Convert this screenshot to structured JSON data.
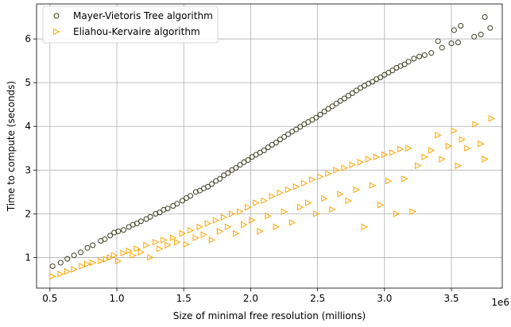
{
  "chart_data": {
    "type": "scatter",
    "xlabel": "Size of minimal free resolution (millions)",
    "ylabel": "Time to compute (seconds)",
    "x_offset_label": "1e6",
    "xlim": [
      0.4,
      3.88
    ],
    "ylim": [
      0.3,
      6.8
    ],
    "grid": true,
    "legend_position": "top-left",
    "x_ticks": [
      0.5,
      1.0,
      1.5,
      2.0,
      2.5,
      3.0,
      3.5
    ],
    "x_tick_labels": [
      "0.5",
      "1.0",
      "1.5",
      "2.0",
      "2.5",
      "3.0",
      "3.5"
    ],
    "y_ticks": [
      1,
      2,
      3,
      4,
      5,
      6
    ],
    "y_tick_labels": [
      "1",
      "2",
      "3",
      "4",
      "5",
      "6"
    ],
    "series": [
      {
        "name": "Mayer-Vietoris Tree algorithm",
        "marker": "circle",
        "color": "#3b3b1f",
        "points": [
          [
            0.52,
            0.8
          ],
          [
            0.58,
            0.88
          ],
          [
            0.63,
            0.97
          ],
          [
            0.68,
            1.05
          ],
          [
            0.73,
            1.12
          ],
          [
            0.78,
            1.22
          ],
          [
            0.82,
            1.28
          ],
          [
            0.88,
            1.38
          ],
          [
            0.91,
            1.42
          ],
          [
            0.95,
            1.5
          ],
          [
            0.98,
            1.57
          ],
          [
            1.01,
            1.6
          ],
          [
            1.05,
            1.63
          ],
          [
            1.09,
            1.7
          ],
          [
            1.12,
            1.75
          ],
          [
            1.15,
            1.78
          ],
          [
            1.18,
            1.83
          ],
          [
            1.22,
            1.88
          ],
          [
            1.25,
            1.93
          ],
          [
            1.29,
            2.0
          ],
          [
            1.32,
            2.03
          ],
          [
            1.35,
            2.09
          ],
          [
            1.38,
            2.12
          ],
          [
            1.42,
            2.18
          ],
          [
            1.45,
            2.23
          ],
          [
            1.49,
            2.3
          ],
          [
            1.52,
            2.36
          ],
          [
            1.55,
            2.41
          ],
          [
            1.59,
            2.5
          ],
          [
            1.62,
            2.53
          ],
          [
            1.65,
            2.58
          ],
          [
            1.68,
            2.62
          ],
          [
            1.71,
            2.68
          ],
          [
            1.74,
            2.75
          ],
          [
            1.77,
            2.8
          ],
          [
            1.8,
            2.88
          ],
          [
            1.83,
            2.93
          ],
          [
            1.86,
            3.0
          ],
          [
            1.89,
            3.05
          ],
          [
            1.92,
            3.12
          ],
          [
            1.95,
            3.18
          ],
          [
            1.98,
            3.23
          ],
          [
            2.01,
            3.3
          ],
          [
            2.04,
            3.35
          ],
          [
            2.07,
            3.4
          ],
          [
            2.1,
            3.45
          ],
          [
            2.13,
            3.52
          ],
          [
            2.16,
            3.58
          ],
          [
            2.19,
            3.63
          ],
          [
            2.22,
            3.7
          ],
          [
            2.25,
            3.76
          ],
          [
            2.28,
            3.82
          ],
          [
            2.31,
            3.88
          ],
          [
            2.34,
            3.93
          ],
          [
            2.37,
            3.99
          ],
          [
            2.4,
            4.05
          ],
          [
            2.43,
            4.1
          ],
          [
            2.46,
            4.15
          ],
          [
            2.49,
            4.2
          ],
          [
            2.52,
            4.27
          ],
          [
            2.55,
            4.34
          ],
          [
            2.58,
            4.4
          ],
          [
            2.61,
            4.46
          ],
          [
            2.64,
            4.52
          ],
          [
            2.67,
            4.58
          ],
          [
            2.7,
            4.64
          ],
          [
            2.73,
            4.7
          ],
          [
            2.76,
            4.76
          ],
          [
            2.79,
            4.82
          ],
          [
            2.82,
            4.88
          ],
          [
            2.85,
            4.93
          ],
          [
            2.88,
            4.98
          ],
          [
            2.91,
            5.02
          ],
          [
            2.94,
            5.08
          ],
          [
            2.97,
            5.12
          ],
          [
            3.0,
            5.18
          ],
          [
            3.03,
            5.23
          ],
          [
            3.06,
            5.28
          ],
          [
            3.09,
            5.34
          ],
          [
            3.12,
            5.38
          ],
          [
            3.15,
            5.42
          ],
          [
            3.18,
            5.48
          ],
          [
            3.22,
            5.55
          ],
          [
            3.26,
            5.6
          ],
          [
            3.3,
            5.63
          ],
          [
            3.35,
            5.68
          ],
          [
            3.4,
            5.95
          ],
          [
            3.43,
            5.8
          ],
          [
            3.5,
            5.9
          ],
          [
            3.52,
            6.2
          ],
          [
            3.55,
            5.92
          ],
          [
            3.57,
            6.3
          ],
          [
            3.67,
            6.05
          ],
          [
            3.72,
            6.1
          ],
          [
            3.75,
            6.5
          ],
          [
            3.79,
            6.25
          ]
        ]
      },
      {
        "name": "Eliahou-Kervaire algorithm",
        "marker": "triangle-right",
        "color": "#ffa500",
        "points": [
          [
            0.52,
            0.57
          ],
          [
            0.58,
            0.62
          ],
          [
            0.63,
            0.68
          ],
          [
            0.68,
            0.73
          ],
          [
            0.74,
            0.8
          ],
          [
            0.78,
            0.85
          ],
          [
            0.82,
            0.88
          ],
          [
            0.88,
            0.92
          ],
          [
            0.92,
            0.96
          ],
          [
            0.95,
            1.0
          ],
          [
            0.98,
            1.05
          ],
          [
            1.01,
            0.92
          ],
          [
            1.05,
            1.1
          ],
          [
            1.09,
            1.15
          ],
          [
            1.12,
            1.05
          ],
          [
            1.15,
            1.2
          ],
          [
            1.18,
            1.12
          ],
          [
            1.22,
            1.28
          ],
          [
            1.25,
            1.0
          ],
          [
            1.29,
            1.35
          ],
          [
            1.32,
            1.2
          ],
          [
            1.35,
            1.4
          ],
          [
            1.38,
            1.28
          ],
          [
            1.42,
            1.45
          ],
          [
            1.45,
            1.35
          ],
          [
            1.49,
            1.55
          ],
          [
            1.52,
            1.3
          ],
          [
            1.55,
            1.62
          ],
          [
            1.59,
            1.45
          ],
          [
            1.62,
            1.7
          ],
          [
            1.65,
            1.52
          ],
          [
            1.68,
            1.78
          ],
          [
            1.71,
            1.4
          ],
          [
            1.74,
            1.85
          ],
          [
            1.77,
            1.6
          ],
          [
            1.8,
            1.92
          ],
          [
            1.83,
            1.7
          ],
          [
            1.86,
            2.0
          ],
          [
            1.89,
            1.55
          ],
          [
            1.92,
            2.05
          ],
          [
            1.95,
            1.75
          ],
          [
            1.98,
            2.15
          ],
          [
            2.01,
            1.85
          ],
          [
            2.04,
            2.25
          ],
          [
            2.07,
            1.6
          ],
          [
            2.1,
            2.3
          ],
          [
            2.13,
            1.95
          ],
          [
            2.16,
            2.4
          ],
          [
            2.19,
            1.7
          ],
          [
            2.22,
            2.48
          ],
          [
            2.25,
            2.05
          ],
          [
            2.28,
            2.55
          ],
          [
            2.31,
            1.8
          ],
          [
            2.34,
            2.62
          ],
          [
            2.37,
            2.15
          ],
          [
            2.4,
            2.7
          ],
          [
            2.43,
            2.25
          ],
          [
            2.46,
            2.78
          ],
          [
            2.49,
            2.0
          ],
          [
            2.52,
            2.85
          ],
          [
            2.55,
            2.35
          ],
          [
            2.58,
            2.92
          ],
          [
            2.61,
            2.1
          ],
          [
            2.64,
            3.0
          ],
          [
            2.67,
            2.45
          ],
          [
            2.7,
            3.05
          ],
          [
            2.73,
            2.3
          ],
          [
            2.76,
            3.12
          ],
          [
            2.79,
            2.55
          ],
          [
            2.82,
            3.18
          ],
          [
            2.85,
            1.7
          ],
          [
            2.88,
            3.25
          ],
          [
            2.91,
            2.65
          ],
          [
            2.94,
            3.3
          ],
          [
            2.97,
            2.2
          ],
          [
            3.0,
            3.35
          ],
          [
            3.03,
            2.75
          ],
          [
            3.06,
            3.4
          ],
          [
            3.09,
            2.0
          ],
          [
            3.12,
            3.48
          ],
          [
            3.15,
            2.8
          ],
          [
            3.18,
            3.5
          ],
          [
            3.21,
            2.05
          ],
          [
            3.25,
            3.1
          ],
          [
            3.3,
            3.3
          ],
          [
            3.35,
            3.45
          ],
          [
            3.4,
            3.8
          ],
          [
            3.43,
            3.25
          ],
          [
            3.48,
            3.55
          ],
          [
            3.52,
            3.9
          ],
          [
            3.55,
            3.1
          ],
          [
            3.58,
            3.7
          ],
          [
            3.62,
            3.5
          ],
          [
            3.68,
            4.05
          ],
          [
            3.72,
            3.6
          ],
          [
            3.75,
            3.25
          ],
          [
            3.8,
            4.18
          ]
        ]
      }
    ]
  }
}
